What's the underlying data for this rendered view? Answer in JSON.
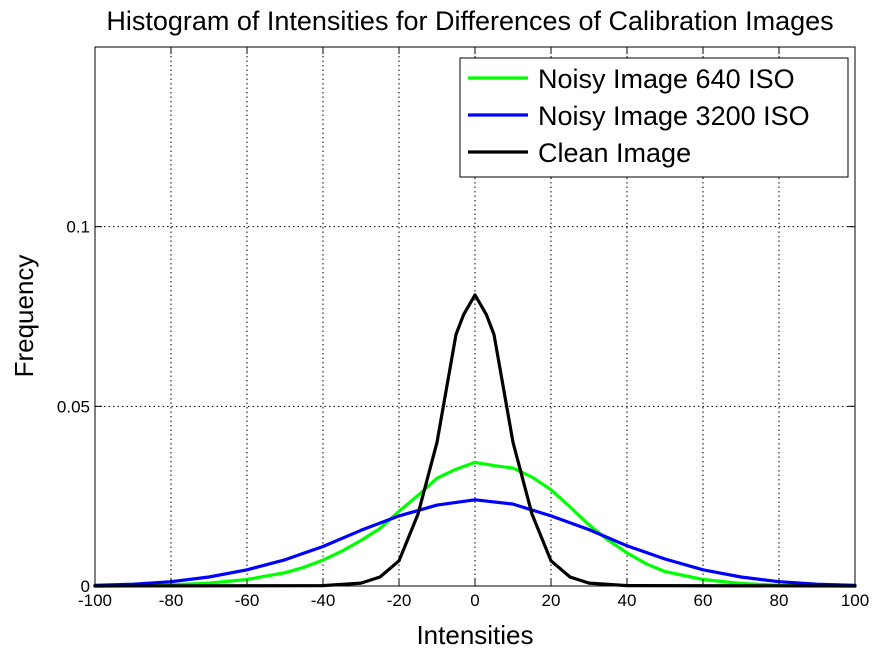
{
  "chart_data": {
    "type": "line",
    "title": "Histogram of Intensities for Differences of Calibration Images",
    "xlabel": "Intensities",
    "ylabel": "Frequency",
    "xlim": [
      -100,
      100
    ],
    "ylim": [
      0,
      0.15
    ],
    "xticks": [
      -100,
      -80,
      -60,
      -40,
      -20,
      0,
      20,
      40,
      60,
      80,
      100
    ],
    "xtick_labels": [
      "-100",
      "-80",
      "-60",
      "-40",
      "-20",
      "0",
      "20",
      "40",
      "60",
      "80",
      "100"
    ],
    "yticks": [
      0,
      0.05,
      0.1
    ],
    "ytick_labels": [
      "0",
      "0.05",
      "0.1"
    ],
    "grid": true,
    "legend_position": "top-right",
    "series": [
      {
        "name": "Noisy Image 640 ISO",
        "color": "#00ff00",
        "x": [
          -100,
          -90,
          -80,
          -70,
          -60,
          -50,
          -45,
          -40,
          -35,
          -30,
          -25,
          -20,
          -15,
          -10,
          -5,
          0,
          5,
          10,
          15,
          20,
          25,
          30,
          35,
          40,
          45,
          50,
          60,
          70,
          80,
          90,
          100
        ],
        "values": [
          0,
          0.0001,
          0.0003,
          0.0008,
          0.0018,
          0.0037,
          0.0052,
          0.0072,
          0.0097,
          0.0127,
          0.016,
          0.0208,
          0.0252,
          0.03,
          0.0325,
          0.0344,
          0.0335,
          0.0328,
          0.0303,
          0.0268,
          0.022,
          0.017,
          0.0128,
          0.0092,
          0.0062,
          0.004,
          0.0018,
          0.0007,
          0.0002,
          0.0001,
          0
        ]
      },
      {
        "name": "Noisy Image 3200 ISO",
        "color": "#0000ff",
        "x": [
          -100,
          -90,
          -80,
          -70,
          -60,
          -50,
          -40,
          -30,
          -20,
          -10,
          0,
          10,
          20,
          30,
          40,
          50,
          60,
          70,
          80,
          90,
          100
        ],
        "values": [
          0.0002,
          0.0005,
          0.0012,
          0.0025,
          0.0045,
          0.0073,
          0.011,
          0.0155,
          0.0195,
          0.0225,
          0.024,
          0.0228,
          0.0195,
          0.0157,
          0.0112,
          0.0075,
          0.0045,
          0.0025,
          0.0012,
          0.0005,
          0.0002
        ]
      },
      {
        "name": "Clean Image",
        "color": "#000000",
        "x": [
          -100,
          -40,
          -30,
          -25,
          -20,
          -15,
          -10,
          -7,
          -5,
          -3,
          0,
          3,
          5,
          7,
          10,
          15,
          20,
          25,
          30,
          40,
          100
        ],
        "values": [
          0,
          0.0001,
          0.0008,
          0.0025,
          0.007,
          0.02,
          0.04,
          0.058,
          0.07,
          0.0755,
          0.081,
          0.0755,
          0.07,
          0.058,
          0.04,
          0.02,
          0.007,
          0.0025,
          0.0008,
          0.0001,
          0
        ]
      }
    ]
  }
}
